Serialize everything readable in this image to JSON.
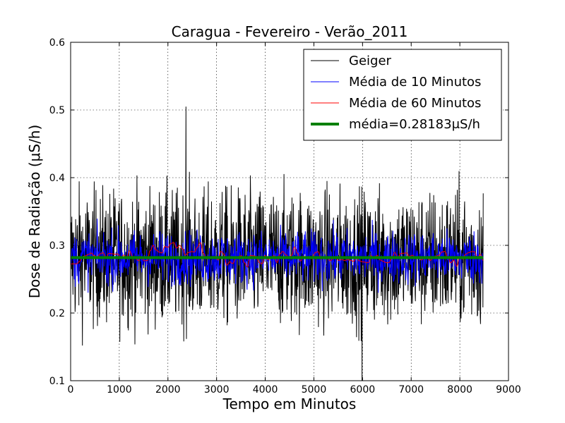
{
  "chart_data": {
    "type": "line",
    "title": "Caragua - Fevereiro - Verão_2011",
    "xlabel": "Tempo em Minutos",
    "ylabel": "Dose de Radiação (μS/h)",
    "xlim": [
      0,
      9000
    ],
    "ylim": [
      0.1,
      0.6
    ],
    "xticks": [
      0,
      1000,
      2000,
      3000,
      4000,
      5000,
      6000,
      7000,
      8000,
      9000
    ],
    "yticks": [
      0.1,
      0.2,
      0.3,
      0.4,
      0.5,
      0.6
    ],
    "xtick_labels": [
      "0",
      "1000",
      "2000",
      "3000",
      "4000",
      "5000",
      "6000",
      "7000",
      "8000",
      "9000"
    ],
    "ytick_labels": [
      "0.1",
      "0.2",
      "0.3",
      "0.4",
      "0.5",
      "0.6"
    ],
    "grid": true,
    "legend_position": "top-right",
    "x_range": [
      0,
      8480
    ],
    "series": [
      {
        "name": "Geiger",
        "color": "#000000",
        "style": "noisy",
        "mean": 0.28183,
        "approx_min": 0.1,
        "approx_max": 0.505,
        "spread": 0.05
      },
      {
        "name": "Média de 10 Minutos",
        "color": "#0000ff",
        "style": "noisy",
        "mean": 0.28183,
        "approx_min": 0.23,
        "approx_max": 0.35,
        "spread": 0.02
      },
      {
        "name": "Média de 60 Minutos",
        "color": "#ff0000",
        "style": "smooth",
        "mean": 0.28183,
        "approx_min": 0.255,
        "approx_max": 0.32,
        "spread": 0.01
      },
      {
        "name": "média=0.28183μS/h",
        "color": "#008000",
        "style": "constant",
        "mean": 0.28183
      }
    ]
  }
}
